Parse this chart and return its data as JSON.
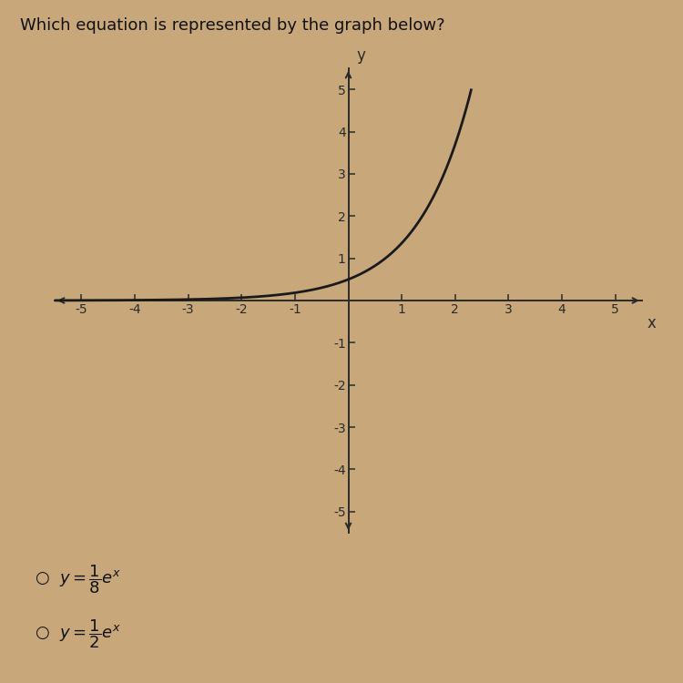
{
  "title": "Which equation is represented by the graph below?",
  "title_fontsize": 13,
  "background_color": "#c8a87a",
  "plot_bg_color": "#c8a87a",
  "xlim": [
    -5.5,
    5.5
  ],
  "ylim": [
    -5.5,
    5.5
  ],
  "xticks": [
    -5,
    -4,
    -3,
    -2,
    -1,
    1,
    2,
    3,
    4,
    5
  ],
  "yticks": [
    -5,
    -4,
    -3,
    -2,
    -1,
    1,
    2,
    3,
    4,
    5
  ],
  "xlabel": "x",
  "ylabel": "y",
  "curve_color": "#1a1a1a",
  "curve_linewidth": 2.0,
  "coefficient": 0.5,
  "x_curve_start": -5.5,
  "x_curve_end": 2.3,
  "tick_fontsize": 10,
  "axis_color": "#2a2a2a",
  "option1": "y = \\frac{1}{8}e^{x}",
  "option2": "y = \\frac{1}{2}e^{x}",
  "option_fontsize": 13
}
